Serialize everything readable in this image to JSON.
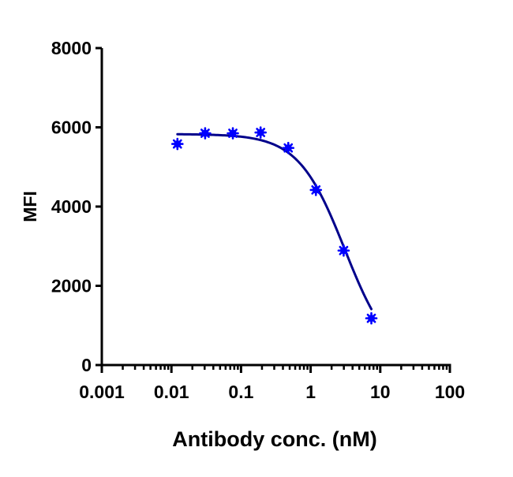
{
  "chart_data": {
    "type": "scatter",
    "title": "",
    "xlabel": "Antibody conc. (nM)",
    "ylabel": "MFI",
    "xscale": "log",
    "xlim": [
      0.001,
      100
    ],
    "ylim": [
      0,
      8000
    ],
    "x_ticks": [
      "0.001",
      "0.01",
      "0.1",
      "1",
      "10",
      "100"
    ],
    "y_ticks": [
      "0",
      "2000",
      "4000",
      "6000",
      "8000"
    ],
    "grid": false,
    "legend": null,
    "series": [
      {
        "name": "MFI",
        "marker": "asterisk",
        "color": "#0000ff",
        "x": [
          0.0122,
          0.0305,
          0.0763,
          0.191,
          0.477,
          1.19,
          2.98,
          7.45
        ],
        "y": [
          5580,
          5850,
          5850,
          5870,
          5480,
          4420,
          2890,
          1180
        ]
      }
    ],
    "fit_curve": {
      "type": "4PL",
      "color": "#00008b",
      "top": 5830,
      "bottom": 0,
      "ic50": 3.1,
      "hill": 1.3,
      "x_range": [
        0.0122,
        7.45
      ]
    }
  }
}
